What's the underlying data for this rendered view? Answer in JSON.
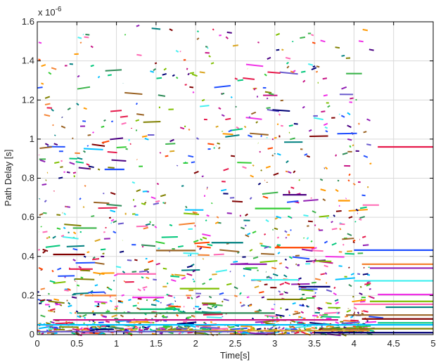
{
  "chart_data": {
    "type": "scatter",
    "title": "",
    "xlabel": "Time[s]",
    "ylabel": "Path Delay [s]",
    "y_exponent_label": "x 10",
    "y_exponent_power": "-6",
    "xlim": [
      0,
      5
    ],
    "ylim": [
      0,
      1.6
    ],
    "grid": true,
    "legend": "none",
    "x_ticks": [
      "0",
      "0.5",
      "1",
      "1.5",
      "2",
      "2.5",
      "3",
      "3.5",
      "4",
      "4.5",
      "5"
    ],
    "y_ticks": [
      "0",
      "0.2",
      "0.4",
      "0.6",
      "0.8",
      "1",
      "1.2",
      "1.4",
      "1.6"
    ],
    "colors": [
      "#e6194b",
      "#3cb44b",
      "#1f4eff",
      "#f58231",
      "#911eb4",
      "#46f0f0",
      "#f032e6",
      "#7fbf00",
      "#ff69b4",
      "#008080",
      "#9a6324",
      "#800000",
      "#00c77a",
      "#808000",
      "#000075",
      "#ff9900",
      "#33cc33",
      "#4b0082",
      "#ff4500",
      "#00bfff",
      "#c71585",
      "#2e8b57",
      "#daa520",
      "#6a5acd"
    ],
    "segments": [
      {
        "x0": 4.3,
        "x1": 5.0,
        "y": 0.96
      },
      {
        "x0": 3.9,
        "x1": 4.1,
        "y": 1.335
      },
      {
        "x0": 4.0,
        "x1": 5.0,
        "y": 0.432
      },
      {
        "x0": 4.1,
        "x1": 5.0,
        "y": 0.36
      },
      {
        "x0": 4.2,
        "x1": 5.0,
        "y": 0.34
      },
      {
        "x0": 4.0,
        "x1": 5.0,
        "y": 0.275
      },
      {
        "x0": 4.3,
        "x1": 5.0,
        "y": 0.205
      },
      {
        "x0": 4.2,
        "x1": 5.0,
        "y": 0.17
      },
      {
        "x0": 4.0,
        "x1": 5.0,
        "y": 0.155
      },
      {
        "x0": 4.4,
        "x1": 5.0,
        "y": 0.14
      },
      {
        "x0": 3.9,
        "x1": 5.0,
        "y": 0.1
      },
      {
        "x0": 4.1,
        "x1": 5.0,
        "y": 0.08
      },
      {
        "x0": 4.3,
        "x1": 5.0,
        "y": 0.06
      },
      {
        "x0": 3.6,
        "x1": 5.0,
        "y": 0.03
      },
      {
        "x0": 3.5,
        "x1": 5.0,
        "y": 0.01
      },
      {
        "x0": 3.8,
        "x1": 3.95,
        "y": 0.685
      },
      {
        "x0": 2.75,
        "x1": 3.2,
        "y": 0.645
      },
      {
        "x0": 3.1,
        "x1": 3.4,
        "y": 0.715
      },
      {
        "x0": 3.0,
        "x1": 3.5,
        "y": 0.445
      },
      {
        "x0": 0.0,
        "x1": 5.0,
        "y": 0.05
      },
      {
        "x0": 0.2,
        "x1": 3.8,
        "y": 0.075
      },
      {
        "x0": 0.5,
        "x1": 3.0,
        "y": 0.11
      },
      {
        "x0": 1.5,
        "x1": 4.2,
        "y": 0.02
      },
      {
        "x0": 0.0,
        "x1": 2.5,
        "y": 0.015
      },
      {
        "x0": 0.4,
        "x1": 0.7,
        "y": 0.335
      },
      {
        "x0": 0.45,
        "x1": 0.75,
        "y": 0.545
      },
      {
        "x0": 0.85,
        "x1": 1.1,
        "y": 0.845
      },
      {
        "x0": 0.6,
        "x1": 1.0,
        "y": 0.2
      },
      {
        "x0": 2.5,
        "x1": 2.9,
        "y": 0.36
      },
      {
        "x0": 2.7,
        "x1": 3.3,
        "y": 0.28
      },
      {
        "x0": 1.2,
        "x1": 1.6,
        "y": 0.19
      },
      {
        "x0": 1.8,
        "x1": 2.3,
        "y": 0.235
      },
      {
        "x0": 1.0,
        "x1": 1.5,
        "y": 0.31
      },
      {
        "x0": 2.2,
        "x1": 2.6,
        "y": 0.47
      },
      {
        "x0": 1.5,
        "x1": 2.0,
        "y": 0.43
      },
      {
        "x0": 0.2,
        "x1": 0.6,
        "y": 0.41
      },
      {
        "x0": 1.3,
        "x1": 1.8,
        "y": 0.13
      },
      {
        "x0": 2.9,
        "x1": 3.4,
        "y": 0.18
      },
      {
        "x0": 3.3,
        "x1": 3.7,
        "y": 0.245
      }
    ]
  }
}
